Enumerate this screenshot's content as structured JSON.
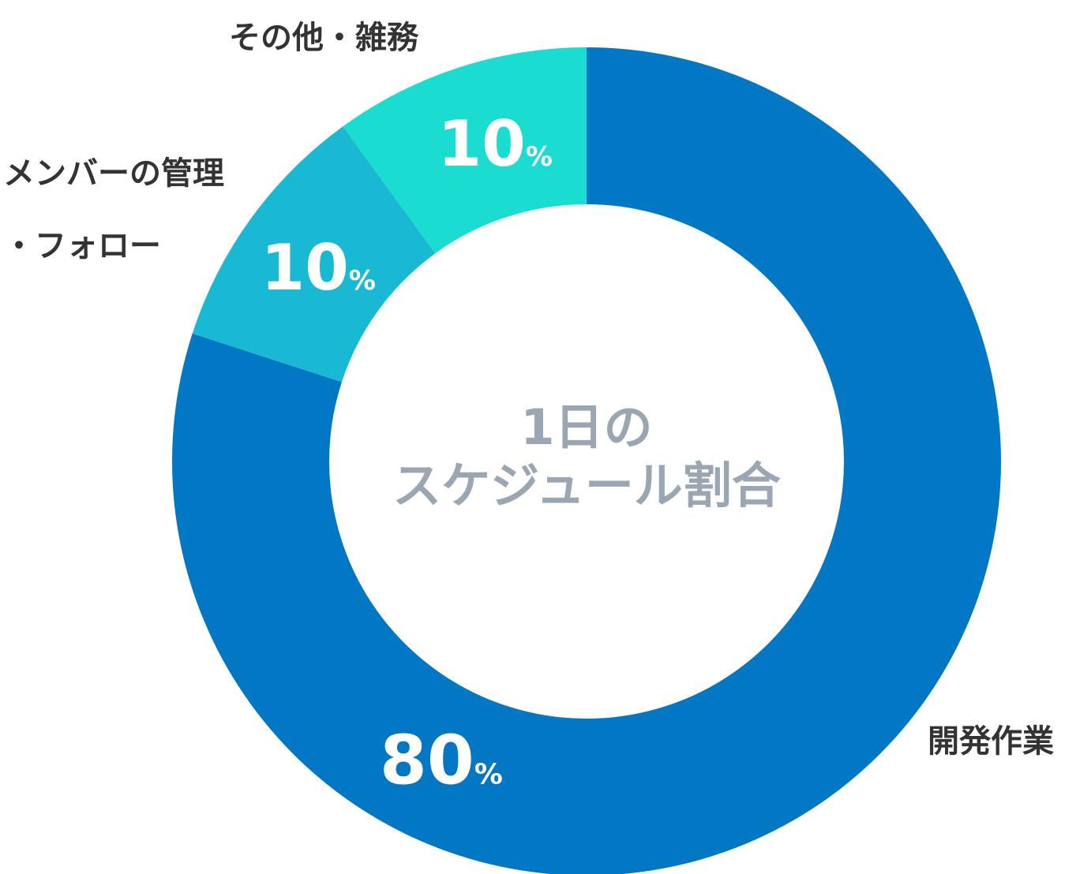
{
  "chart_data": {
    "type": "pie",
    "variant": "donut",
    "center_title": [
      "1日の",
      "スケジュール割合"
    ],
    "unit": "%",
    "categories": [
      "開発作業",
      "メンバーの管理・フォロー",
      "その他・雑務"
    ],
    "label_lines": [
      [
        "開発作業"
      ],
      [
        "メンバーの管理",
        "・フォロー"
      ],
      [
        "その他・雑務"
      ]
    ],
    "values": [
      80,
      10,
      10
    ],
    "colors": [
      "#0277c4",
      "#19b9d4",
      "#1adcd0"
    ],
    "start": "12 o'clock",
    "direction": "clockwise",
    "legend": "none"
  }
}
